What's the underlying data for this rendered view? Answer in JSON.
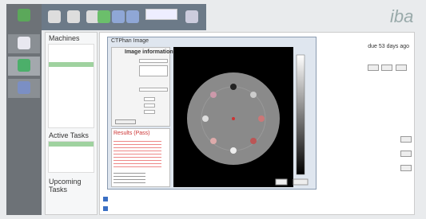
{
  "header": {
    "logo": "iba"
  },
  "machines": {
    "title": "Machines"
  },
  "active_tasks": {
    "title": "Active Tasks"
  },
  "upcoming_tasks": {
    "title": "Upcoming Tasks"
  },
  "tasks": {
    "due": "due 53 days ago"
  },
  "dialog": {
    "title": "CTPhan Image",
    "section": "Image information",
    "results": "Results (Pass)"
  }
}
